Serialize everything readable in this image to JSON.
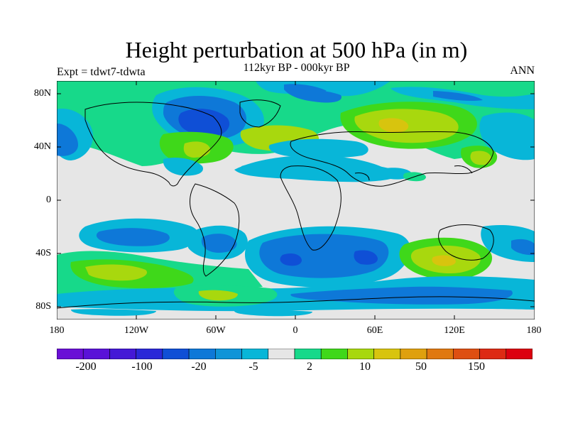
{
  "title": "Height perturbation at 500 hPa (in m)",
  "subtitle": "112kyr BP - 000kyr BP",
  "left_label": "Expt = tdwt7-tdwta",
  "right_label": "ANN",
  "axes": {
    "lat_labels": [
      "80N",
      "40N",
      "0",
      "40S",
      "80S"
    ],
    "lon_labels": [
      "180",
      "120W",
      "60W",
      "0",
      "60E",
      "120E",
      "180"
    ]
  },
  "colorbar": {
    "colors": [
      "#6a0fd6",
      "#5a12d8",
      "#4418d6",
      "#2a28d8",
      "#0f4fd6",
      "#0e78d8",
      "#0f94d8",
      "#08b6d8",
      "#e6e6e6",
      "#17d98a",
      "#3fd81a",
      "#a8d80e",
      "#d8c40e",
      "#dfa00e",
      "#e07810",
      "#de4f12",
      "#dd2a14",
      "#dc0010"
    ],
    "labels": [
      "-200",
      "-100",
      "-20",
      "-5",
      "2",
      "10",
      "50",
      "150"
    ]
  },
  "features": {
    "background": "#e6e6e6",
    "regions": [
      {
        "name": "arctic-green-band",
        "color": "#17d98a"
      },
      {
        "name": "north-america-low",
        "color": "#0e78d8"
      },
      {
        "name": "north-america-core",
        "color": "#0f4fd6"
      },
      {
        "name": "atlantic-high",
        "color": "#a8d80e"
      },
      {
        "name": "asia-high",
        "color": "#a8d80e"
      },
      {
        "name": "asia-high-core",
        "color": "#d8c40e"
      },
      {
        "name": "africa-low",
        "color": "#08b6d8"
      },
      {
        "name": "south-indian-low",
        "color": "#0e78d8"
      },
      {
        "name": "south-pacific-high",
        "color": "#a8d80e"
      },
      {
        "name": "antarctic-low",
        "color": "#08b6d8"
      }
    ]
  }
}
